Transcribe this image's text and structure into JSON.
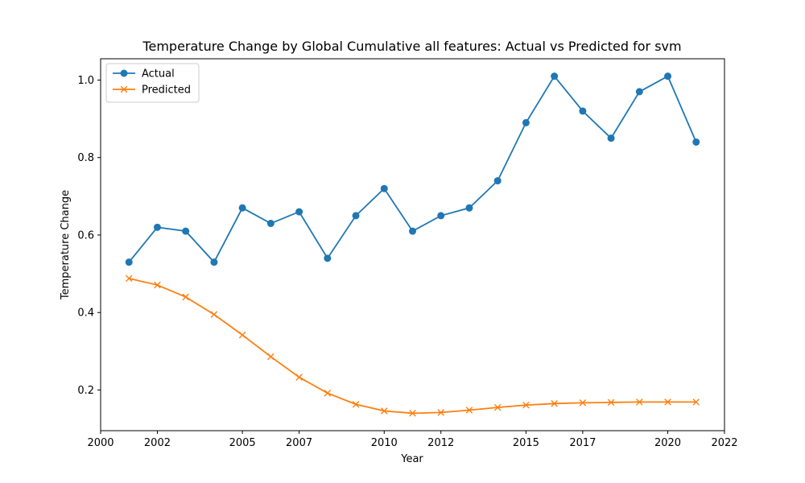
{
  "chart_data": {
    "type": "line",
    "title": "Temperature Change by Global Cumulative all features: Actual vs Predicted for svm",
    "xlabel": "Year",
    "ylabel": "Temperature Change",
    "xlim": [
      2000,
      2022
    ],
    "ylim": [
      0.095,
      1.055
    ],
    "x_ticks": [
      2000,
      2002,
      2005,
      2007,
      2010,
      2012,
      2015,
      2017,
      2020,
      2022
    ],
    "x_tick_labels": [
      "2000",
      "2002",
      "2005",
      "2007",
      "2010",
      "2012",
      "2015",
      "2017",
      "2020",
      "2022"
    ],
    "y_ticks": [
      0.2,
      0.4,
      0.6,
      0.8,
      1.0
    ],
    "y_tick_labels": [
      "0.2",
      "0.4",
      "0.6",
      "0.8",
      "1.0"
    ],
    "grid": false,
    "legend_position": "top-left",
    "x": [
      2001.0,
      2002.0,
      2003.0,
      2004.0,
      2005.0,
      2006.0,
      2007.0,
      2008.0,
      2009.0,
      2010.0,
      2011.0,
      2012.0,
      2013.0,
      2014.0,
      2015.0,
      2016.0,
      2017.0,
      2018.0,
      2019.0,
      2020.0,
      2021.0
    ],
    "series": [
      {
        "name": "Actual",
        "color": "#1f77b4",
        "marker": "circle",
        "values": [
          0.53,
          0.62,
          0.61,
          0.53,
          0.67,
          0.63,
          0.66,
          0.54,
          0.65,
          0.72,
          0.61,
          0.65,
          0.67,
          0.74,
          0.89,
          1.01,
          0.92,
          0.85,
          0.97,
          1.01,
          0.84
        ]
      },
      {
        "name": "Predicted",
        "color": "#ff7f0e",
        "marker": "x",
        "values": [
          0.488,
          0.471,
          0.44,
          0.395,
          0.342,
          0.286,
          0.233,
          0.192,
          0.163,
          0.146,
          0.14,
          0.142,
          0.148,
          0.155,
          0.161,
          0.165,
          0.167,
          0.168,
          0.169,
          0.169,
          0.169
        ]
      }
    ]
  }
}
